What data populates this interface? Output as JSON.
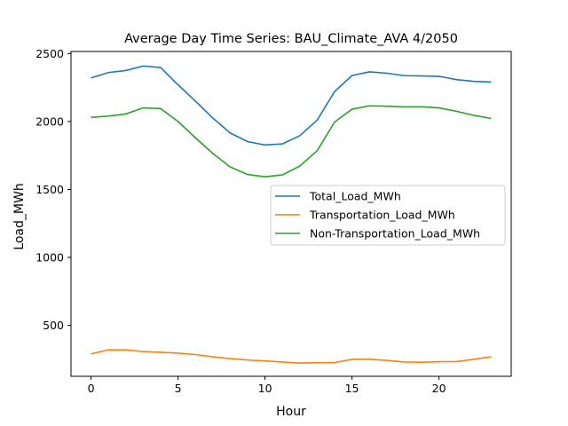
{
  "chart_data": {
    "type": "line",
    "title": "Average Day Time Series: BAU_Climate_AVA 4/2050",
    "xlabel": "Hour",
    "ylabel": "Load_MWh",
    "xlim": [
      -1.15,
      24.15
    ],
    "ylim": [
      125,
      2515
    ],
    "xticks": [
      0,
      5,
      10,
      15,
      20
    ],
    "yticks": [
      500,
      1000,
      1500,
      2000,
      2500
    ],
    "grid": false,
    "legend_position": "center-right",
    "x": [
      0,
      1,
      2,
      3,
      4,
      5,
      6,
      7,
      8,
      9,
      10,
      11,
      12,
      13,
      14,
      15,
      16,
      17,
      18,
      19,
      20,
      21,
      22,
      23
    ],
    "series": [
      {
        "name": "Total_Load_MWh",
        "color": "#1f77b4",
        "values": [
          2320,
          2360,
          2375,
          2408,
          2397,
          2270,
          2150,
          2025,
          1915,
          1852,
          1827,
          1835,
          1895,
          2010,
          2220,
          2338,
          2365,
          2355,
          2337,
          2335,
          2332,
          2308,
          2295,
          2290
        ]
      },
      {
        "name": "Transportation_Load_MWh",
        "color": "#ff7f0e",
        "values": [
          290,
          320,
          320,
          307,
          302,
          295,
          285,
          268,
          255,
          245,
          238,
          230,
          222,
          225,
          226,
          250,
          250,
          242,
          230,
          228,
          232,
          233,
          250,
          268
        ]
      },
      {
        "name": "Non-Transportation_Load_MWh",
        "color": "#2ca02c",
        "values": [
          2030,
          2040,
          2055,
          2100,
          2095,
          2000,
          1880,
          1765,
          1665,
          1610,
          1593,
          1607,
          1672,
          1785,
          1996,
          2090,
          2115,
          2112,
          2107,
          2108,
          2100,
          2075,
          2045,
          2022
        ]
      }
    ]
  }
}
